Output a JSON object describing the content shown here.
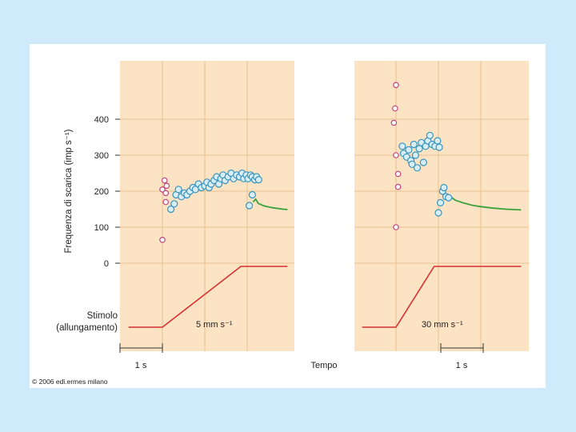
{
  "colors": {
    "page_background": "#cfeafb",
    "plot_background": "#fbe3c4",
    "grid": "#e7c28f",
    "pink_marker": "#c2447a",
    "blue_marker": "#3a93bb",
    "blue_fill": "#d7eef6",
    "decay_line": "#3aa13a",
    "stimulus_line": "#d63030"
  },
  "figure": {
    "ylabel": "Frequenza di scarica (imp s⁻¹)",
    "stimulus_label_line1": "Stimolo",
    "stimulus_label_line2": "(allungamento)",
    "xlabel": "Tempo",
    "scalebar_left": "1 s",
    "scalebar_right": "1 s",
    "copyright": "© 2006 edi.ermes milano"
  },
  "chart_data": [
    {
      "type": "scatter",
      "panel": "left",
      "stimulus_label": "5 mm s⁻¹",
      "ylabel": "Frequenza di scarica (imp s⁻¹)",
      "xlabel": "Tempo",
      "ylim": [
        0,
        560
      ],
      "yticks": [
        0,
        100,
        200,
        300,
        400
      ],
      "xlim": [
        -0.55,
        2.95
      ],
      "grid": true,
      "series": [
        {
          "marker": "pink",
          "points": [
            [
              0.0,
              65
            ],
            [
              0.0,
              205
            ],
            [
              0.05,
              230
            ],
            [
              0.08,
              195
            ],
            [
              0.1,
              215
            ],
            [
              0.08,
              170
            ]
          ]
        },
        {
          "marker": "blue",
          "points": [
            [
              0.2,
              150
            ],
            [
              0.28,
              165
            ],
            [
              0.32,
              190
            ],
            [
              0.38,
              205
            ],
            [
              0.45,
              185
            ],
            [
              0.52,
              195
            ],
            [
              0.58,
              190
            ],
            [
              0.65,
              200
            ],
            [
              0.72,
              210
            ],
            [
              0.78,
              205
            ],
            [
              0.85,
              220
            ],
            [
              0.92,
              210
            ],
            [
              1.0,
              215
            ],
            [
              1.05,
              225
            ],
            [
              1.1,
              210
            ],
            [
              1.15,
              220
            ],
            [
              1.22,
              230
            ],
            [
              1.28,
              240
            ],
            [
              1.33,
              220
            ],
            [
              1.38,
              235
            ],
            [
              1.43,
              245
            ],
            [
              1.48,
              230
            ],
            [
              1.55,
              240
            ],
            [
              1.62,
              250
            ],
            [
              1.68,
              235
            ],
            [
              1.75,
              245
            ],
            [
              1.82,
              240
            ],
            [
              1.88,
              250
            ],
            [
              1.92,
              235
            ],
            [
              1.98,
              245
            ],
            [
              2.02,
              235
            ],
            [
              2.08,
              245
            ],
            [
              2.12,
              240
            ],
            [
              2.18,
              232
            ],
            [
              2.22,
              240
            ],
            [
              2.27,
              232
            ],
            [
              2.05,
              160
            ],
            [
              2.12,
              190
            ]
          ]
        }
      ],
      "decay_curve": [
        [
          2.14,
          170
        ],
        [
          2.2,
          178
        ],
        [
          2.26,
          166
        ],
        [
          2.4,
          159
        ],
        [
          2.6,
          154
        ],
        [
          2.85,
          150
        ],
        [
          2.95,
          149
        ]
      ],
      "stimulus_ramp": [
        [
          -0.8,
          0
        ],
        [
          0.0,
          0
        ],
        [
          1.85,
          1
        ],
        [
          2.95,
          1
        ]
      ]
    },
    {
      "type": "scatter",
      "panel": "right",
      "stimulus_label": "30 mm s⁻¹",
      "ylabel": "",
      "xlabel": "Tempo",
      "ylim": [
        0,
        560
      ],
      "xlim": [
        -0.55,
        2.95
      ],
      "grid": true,
      "series": [
        {
          "marker": "pink",
          "points": [
            [
              0.0,
              100
            ],
            [
              0.05,
              212
            ],
            [
              0.05,
              248
            ],
            [
              0.0,
              300
            ],
            [
              -0.05,
              390
            ],
            [
              -0.02,
              430
            ],
            [
              0.0,
              495
            ]
          ]
        },
        {
          "marker": "blue",
          "points": [
            [
              0.15,
              325
            ],
            [
              0.18,
              305
            ],
            [
              0.25,
              295
            ],
            [
              0.3,
              315
            ],
            [
              0.35,
              285
            ],
            [
              0.38,
              275
            ],
            [
              0.42,
              330
            ],
            [
              0.46,
              300
            ],
            [
              0.5,
              265
            ],
            [
              0.55,
              318
            ],
            [
              0.6,
              335
            ],
            [
              0.65,
              280
            ],
            [
              0.7,
              325
            ],
            [
              0.75,
              340
            ],
            [
              0.8,
              355
            ],
            [
              0.85,
              330
            ],
            [
              0.92,
              325
            ],
            [
              0.98,
              340
            ],
            [
              1.02,
              322
            ],
            [
              1.0,
              140
            ],
            [
              1.05,
              168
            ],
            [
              1.1,
              200
            ],
            [
              1.13,
              210
            ],
            [
              1.18,
              185
            ],
            [
              1.24,
              182
            ]
          ]
        }
      ],
      "decay_curve": [
        [
          1.25,
          188
        ],
        [
          1.4,
          175
        ],
        [
          1.6,
          167
        ],
        [
          1.8,
          161
        ],
        [
          2.0,
          157
        ],
        [
          2.3,
          153
        ],
        [
          2.6,
          150
        ],
        [
          2.95,
          148
        ]
      ],
      "stimulus_ramp": [
        [
          -0.8,
          0
        ],
        [
          0.0,
          0
        ],
        [
          0.9,
          1
        ],
        [
          2.95,
          1
        ]
      ]
    }
  ]
}
